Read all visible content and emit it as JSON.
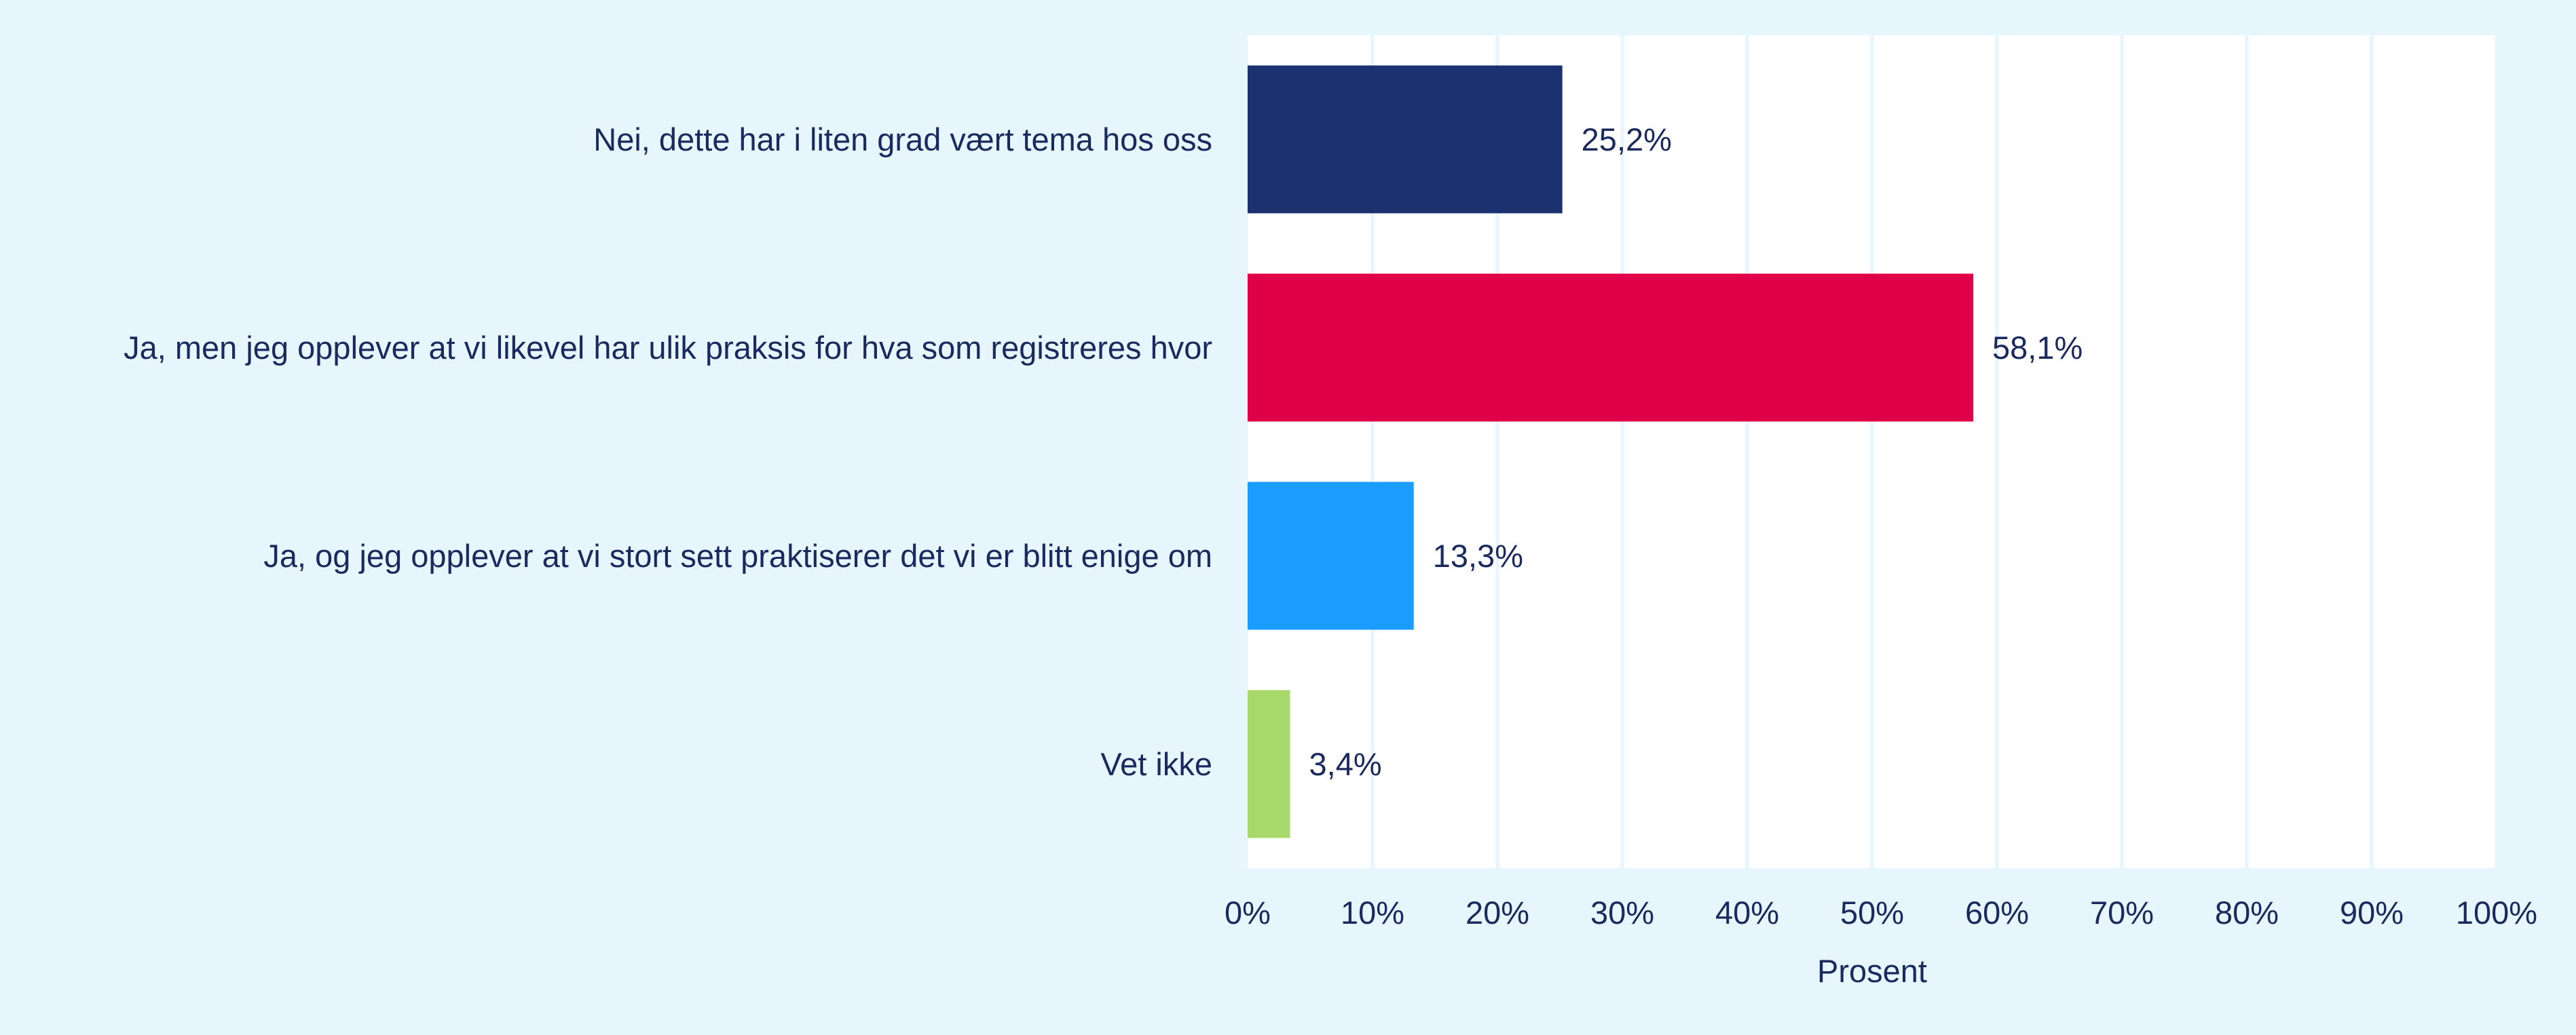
{
  "chart_data": {
    "type": "bar",
    "orientation": "horizontal",
    "categories": [
      "Nei, dette har i liten grad vært tema hos oss",
      "Ja, men jeg opplever at vi likevel har ulik praksis for hva som registreres hvor",
      "Ja, og jeg opplever at vi stort sett praktiserer det vi er blitt enige om",
      "Vet ikke"
    ],
    "values": [
      25.2,
      58.1,
      13.3,
      3.4
    ],
    "value_labels": [
      "25,2%",
      "58,1%",
      "13,3%",
      "3,4%"
    ],
    "bar_colors": [
      "#1b3170",
      "#e0004a",
      "#1a9dff",
      "#a8d86a"
    ],
    "xlabel": "Prosent",
    "ylabel": "",
    "xlim": [
      0,
      100
    ],
    "xticks": [
      0,
      10,
      20,
      30,
      40,
      50,
      60,
      70,
      80,
      90,
      100
    ],
    "xtick_labels": [
      "0%",
      "10%",
      "20%",
      "30%",
      "40%",
      "50%",
      "60%",
      "70%",
      "80%",
      "90%",
      "100%"
    ],
    "grid": true,
    "legend": "none"
  },
  "colors": {
    "background": "#e6f6fc",
    "plot_background": "#ffffff",
    "grid": "#e6f6fc",
    "text": "#1b2a5e"
  }
}
